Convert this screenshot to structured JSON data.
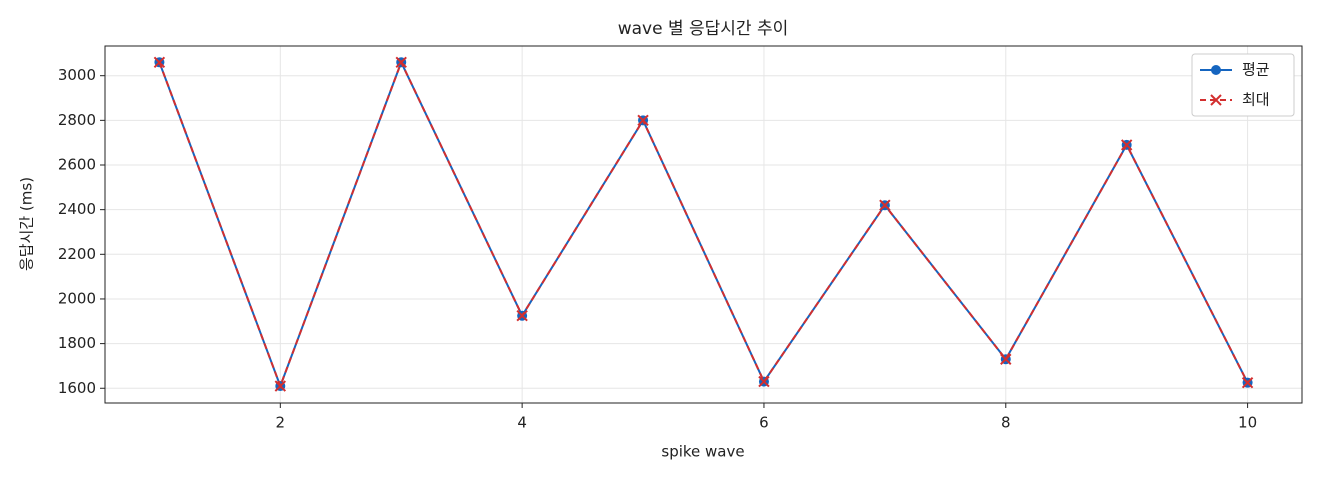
{
  "chart_data": {
    "type": "line",
    "title": "wave 별 응답시간 추이",
    "x_label": "spike wave",
    "y_label": "응답시간 (ms)",
    "x": [
      1,
      2,
      3,
      4,
      5,
      6,
      7,
      8,
      9,
      10
    ],
    "series": [
      {
        "name": "평균",
        "color": "#1565c0",
        "marker": "o",
        "linestyle": "solid",
        "values": [
          3060,
          1610,
          3060,
          1925,
          2800,
          1630,
          2420,
          1730,
          2690,
          1625
        ]
      },
      {
        "name": "최대",
        "color": "#d32f2f",
        "marker": "x",
        "linestyle": "dashed",
        "values": [
          3060,
          1610,
          3060,
          1925,
          2800,
          1630,
          2420,
          1730,
          2690,
          1625
        ]
      }
    ],
    "xlim": [
      0.55,
      10.45
    ],
    "xticks": [
      2,
      4,
      6,
      8,
      10
    ],
    "ylim": [
      1534,
      3133
    ],
    "yticks": [
      1600,
      1800,
      2000,
      2200,
      2400,
      2600,
      2800,
      3000
    ],
    "grid": true,
    "legend": "upper right"
  }
}
